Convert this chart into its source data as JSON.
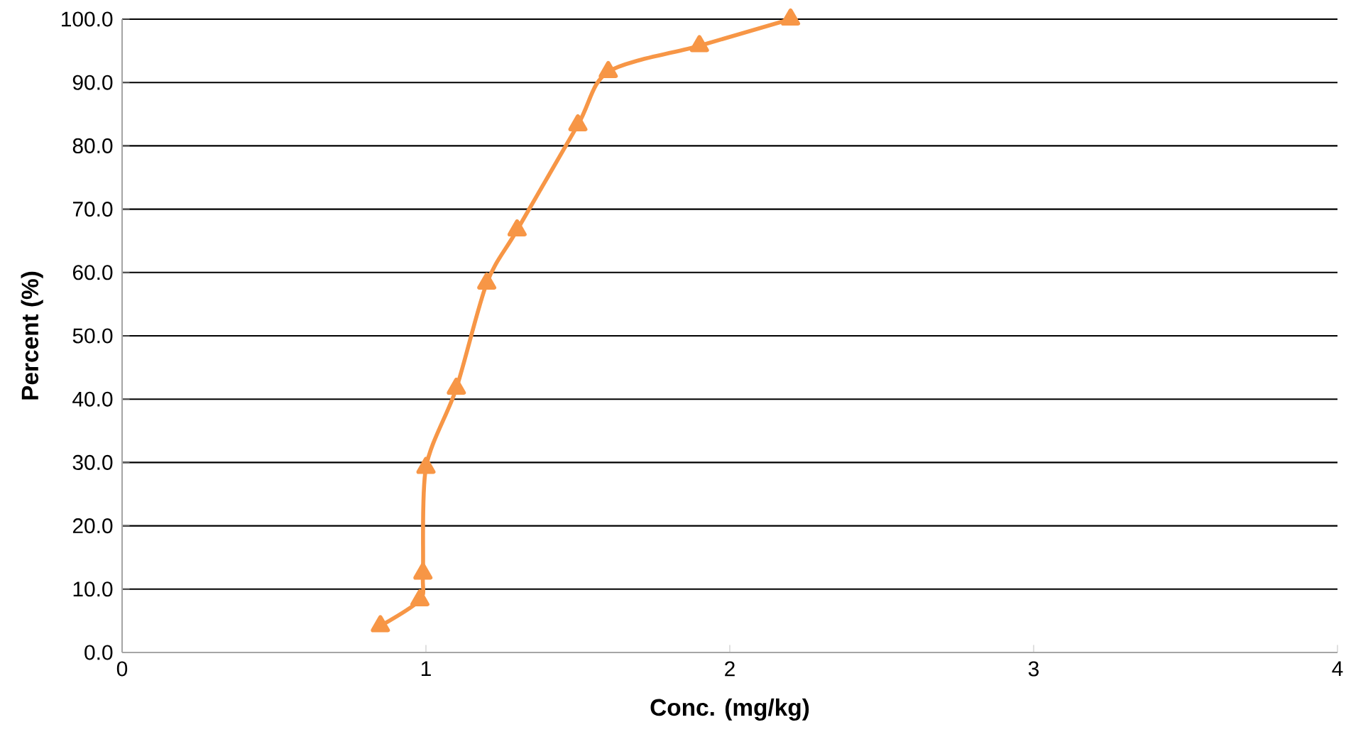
{
  "chart_data": {
    "type": "line",
    "xlabel": "Conc. (mg/kg)",
    "ylabel": "Percent (%)",
    "xlim": [
      0,
      4
    ],
    "xticks": [
      0,
      1,
      2,
      3,
      4
    ],
    "ylim": [
      0,
      100
    ],
    "yticks": [
      {
        "value": 0,
        "label": "0.0"
      },
      {
        "value": 10,
        "label": "10.0"
      },
      {
        "value": 20,
        "label": "20.0"
      },
      {
        "value": 30,
        "label": "30.0"
      },
      {
        "value": 40,
        "label": "40.0"
      },
      {
        "value": 50,
        "label": "50.0"
      },
      {
        "value": 60,
        "label": "60.0"
      },
      {
        "value": 70,
        "label": "70.0"
      },
      {
        "value": 80,
        "label": "80.0"
      },
      {
        "value": 90,
        "label": "90.0"
      },
      {
        "value": 100,
        "label": "100.0"
      }
    ],
    "grid": "y",
    "marker": "triangle",
    "line_style": "solid",
    "series": [
      {
        "color": "#f79646",
        "x": [
          0.85,
          0.98,
          0.99,
          1.0,
          1.1,
          1.2,
          1.3,
          1.5,
          1.6,
          1.9,
          2.2
        ],
        "values": [
          4.2,
          8.3,
          12.5,
          29.2,
          41.7,
          58.3,
          66.7,
          83.3,
          91.7,
          95.8,
          100
        ]
      }
    ]
  }
}
